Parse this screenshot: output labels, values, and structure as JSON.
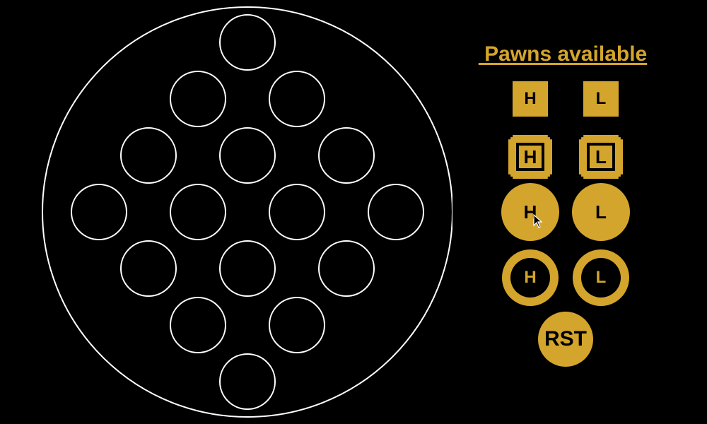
{
  "panel": {
    "title": " Pawns available"
  },
  "pawns": {
    "small_square_h": "H",
    "small_square_l": "L",
    "big_square_h": "H",
    "big_square_l": "L",
    "solid_circle_h": "H",
    "solid_circle_l": "L",
    "ring_circle_h": "H",
    "ring_circle_l": "L"
  },
  "reset_label": "RST",
  "colors": {
    "accent": "#d4a52c",
    "board_line": "#ffffff",
    "background": "#000000"
  },
  "board": {
    "holes": 16
  }
}
